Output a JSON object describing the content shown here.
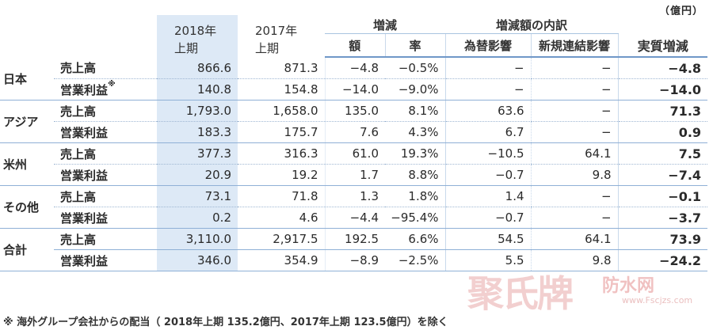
{
  "unit": "（億円）",
  "header": {
    "y2018": [
      "2018年",
      "上期"
    ],
    "y2017": [
      "2017年",
      "上期"
    ],
    "change": "増減",
    "change_amount": "額",
    "change_rate": "率",
    "breakdown": "増減額の内訳",
    "fx": "為替影響",
    "new_consol": "新規連結影響",
    "real": "実質増減"
  },
  "rows": [
    {
      "region": "日本",
      "item": "売上高",
      "y2018": "866.6",
      "y2017": "871.3",
      "amount": "−4.8",
      "rate": "−0.5%",
      "fx": "−",
      "new": "−",
      "real": "−4.8"
    },
    {
      "region": "",
      "item": "営業利益",
      "mark": "※",
      "y2018": "140.8",
      "y2017": "154.8",
      "amount": "−14.0",
      "rate": "−9.0%",
      "fx": "−",
      "new": "−",
      "real": "−14.0"
    },
    {
      "region": "アジア",
      "item": "売上高",
      "y2018": "1,793.0",
      "y2017": "1,658.0",
      "amount": "135.0",
      "rate": "8.1%",
      "fx": "63.6",
      "new": "−",
      "real": "71.3"
    },
    {
      "region": "",
      "item": "営業利益",
      "y2018": "183.3",
      "y2017": "175.7",
      "amount": "7.6",
      "rate": "4.3%",
      "fx": "6.7",
      "new": "−",
      "real": "0.9"
    },
    {
      "region": "米州",
      "item": "売上高",
      "y2018": "377.3",
      "y2017": "316.3",
      "amount": "61.0",
      "rate": "19.3%",
      "fx": "−10.5",
      "new": "64.1",
      "real": "7.5"
    },
    {
      "region": "",
      "item": "営業利益",
      "y2018": "20.9",
      "y2017": "19.2",
      "amount": "1.7",
      "rate": "8.8%",
      "fx": "−0.7",
      "new": "9.8",
      "real": "−7.4"
    },
    {
      "region": "その他",
      "item": "売上高",
      "y2018": "73.1",
      "y2017": "71.8",
      "amount": "1.3",
      "rate": "1.8%",
      "fx": "1.4",
      "new": "−",
      "real": "−0.1"
    },
    {
      "region": "",
      "item": "営業利益",
      "y2018": "0.2",
      "y2017": "4.6",
      "amount": "−4.4",
      "rate": "−95.4%",
      "fx": "−0.7",
      "new": "−",
      "real": "−3.7"
    },
    {
      "region": "合計",
      "item": "売上高",
      "y2018": "3,110.0",
      "y2017": "2,917.5",
      "amount": "192.5",
      "rate": "6.6%",
      "fx": "54.5",
      "new": "64.1",
      "real": "73.9"
    },
    {
      "region": "",
      "item": "営業利益",
      "y2018": "346.0",
      "y2017": "354.9",
      "amount": "−8.9",
      "rate": "−2.5%",
      "fx": "5.5",
      "new": "9.8",
      "real": "−24.2"
    }
  ],
  "footnote": "※  海外グループ会社からの配当（ 2018年上期 135.2億円、2017年上期 123.5億円）を除く",
  "watermark": {
    "big": "聚氏牌",
    "small": "防水网",
    "url": "www.Fscjzs.com"
  }
}
